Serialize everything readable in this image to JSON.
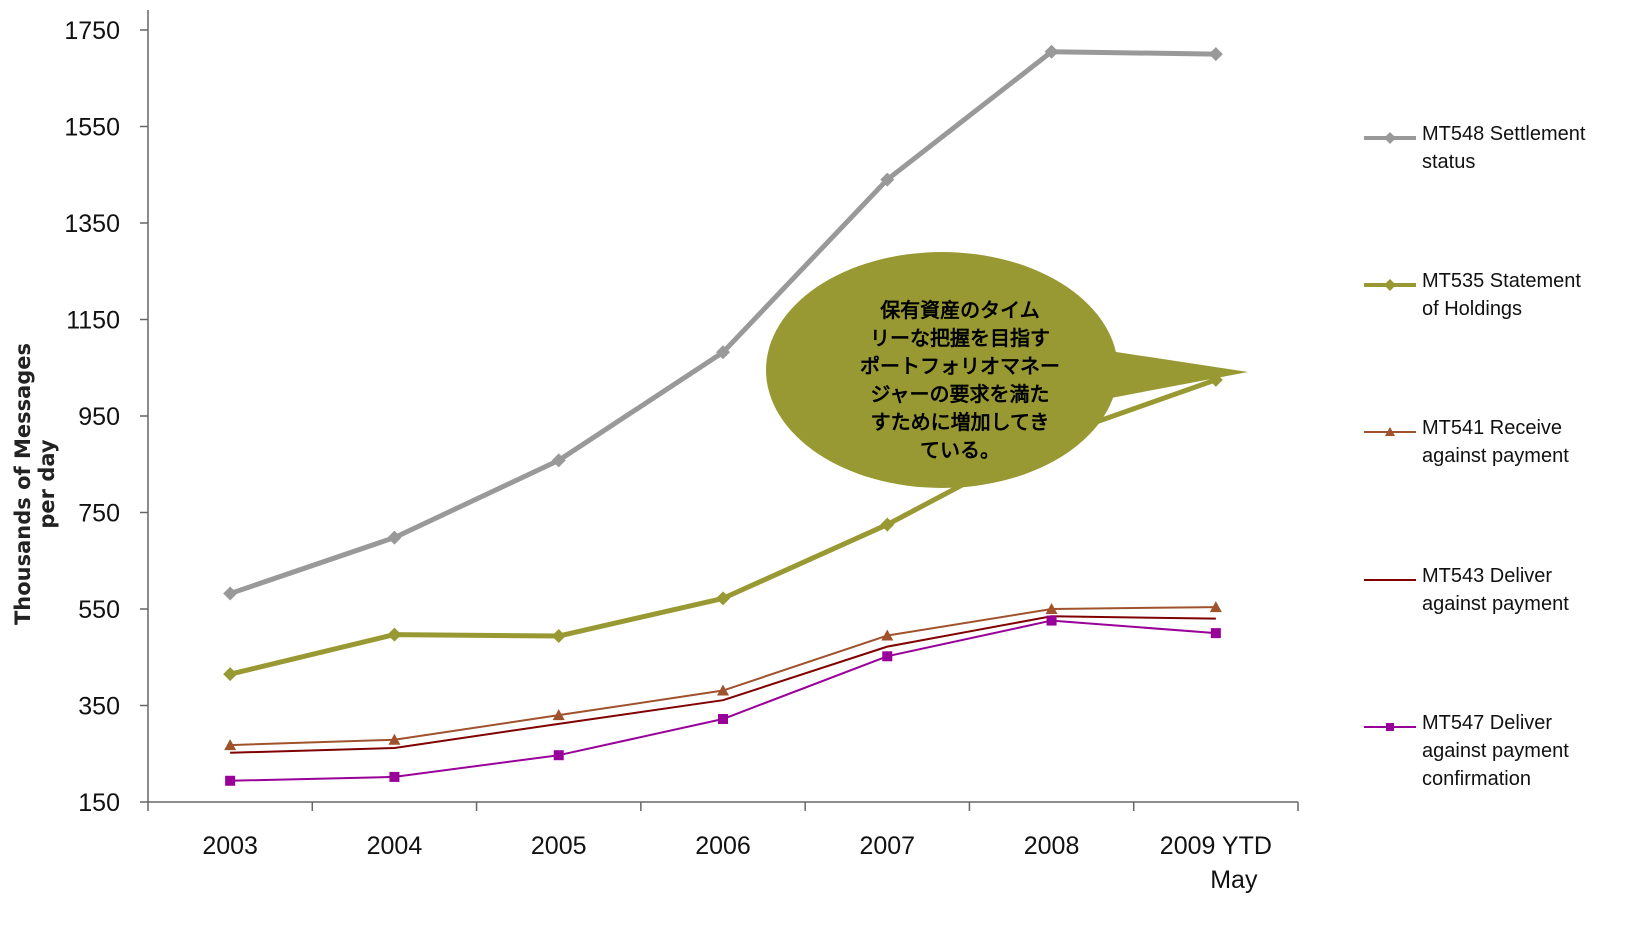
{
  "chart_data": {
    "type": "line",
    "categories": [
      "2003",
      "2004",
      "2005",
      "2006",
      "2007",
      "2008",
      "2009 YTD May"
    ],
    "category_lines": [
      [
        "2003"
      ],
      [
        "2004"
      ],
      [
        "2005"
      ],
      [
        "2006"
      ],
      [
        "2007"
      ],
      [
        "2008"
      ],
      [
        "2009 YTD",
        "May"
      ]
    ],
    "ylabel": "Thousands of Messages per day",
    "ylim": [
      150,
      1750
    ],
    "yticks": [
      150,
      350,
      550,
      750,
      950,
      1150,
      1350,
      1550,
      1750
    ],
    "grid": false,
    "legend_position": "right",
    "series": [
      {
        "name": "MT548 Settlement status",
        "name_lines": [
          "MT548 Settlement",
          "status"
        ],
        "color": "#999999",
        "marker": "diamond",
        "values": [
          582,
          698,
          858,
          1082,
          1440,
          1705,
          1700
        ]
      },
      {
        "name": "MT535 Statement of Holdings",
        "name_lines": [
          "MT535 Statement",
          "of Holdings"
        ],
        "color": "#999933",
        "marker": "diamond",
        "values": [
          415,
          497,
          494,
          572,
          725,
          905,
          1025
        ]
      },
      {
        "name": "MT541 Receive against payment",
        "name_lines": [
          "MT541 Receive",
          "against payment"
        ],
        "color": "#a0522d",
        "marker": "triangle",
        "values": [
          268,
          279,
          330,
          381,
          495,
          550,
          554
        ]
      },
      {
        "name": "MT543 Deliver against payment",
        "name_lines": [
          "MT543 Deliver",
          "against payment"
        ],
        "color": "#800000",
        "marker": "none",
        "values": [
          252,
          262,
          312,
          361,
          472,
          535,
          530
        ]
      },
      {
        "name": "MT547 Deliver against payment confirmation",
        "name_lines": [
          "MT547 Deliver",
          "against payment",
          "confirmation"
        ],
        "color": "#990099",
        "marker": "square",
        "values": [
          194,
          202,
          247,
          322,
          452,
          526,
          500
        ]
      }
    ],
    "annotation": {
      "text": "保有資産のタイム\nリーな把握を目指す\nポートフォリオマネー\nジャーの要求を満た\nすために増加してき\nている。",
      "fill": "#999933"
    }
  }
}
